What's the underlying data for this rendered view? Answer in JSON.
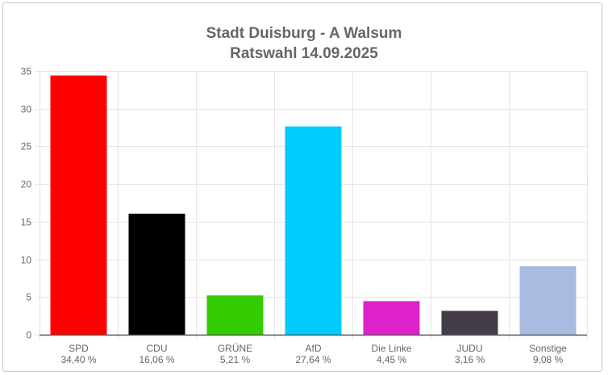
{
  "chart_data": {
    "type": "bar",
    "title": "Stadt Duisburg - A Walsum",
    "subtitle": "Ratswahl 14.09.2025",
    "categories": [
      "SPD",
      "CDU",
      "GRÜNE",
      "AfD",
      "Die Linke",
      "JUDU",
      "Sonstige"
    ],
    "value_labels": [
      "34,40 %",
      "16,06 %",
      "5,21 %",
      "27,64 %",
      "4,45 %",
      "3,16 %",
      "9,08 %"
    ],
    "values": [
      34.4,
      16.06,
      5.21,
      27.64,
      4.45,
      3.16,
      9.08
    ],
    "colors": [
      "#ff0000",
      "#000000",
      "#33cc00",
      "#00ccff",
      "#dd22cc",
      "#443c48",
      "#aabbe1"
    ],
    "yticks": [
      "0",
      "5",
      "10",
      "15",
      "20",
      "25",
      "30",
      "35"
    ],
    "ylim": [
      0,
      35
    ],
    "grid": true,
    "xlabel": "",
    "ylabel": ""
  }
}
